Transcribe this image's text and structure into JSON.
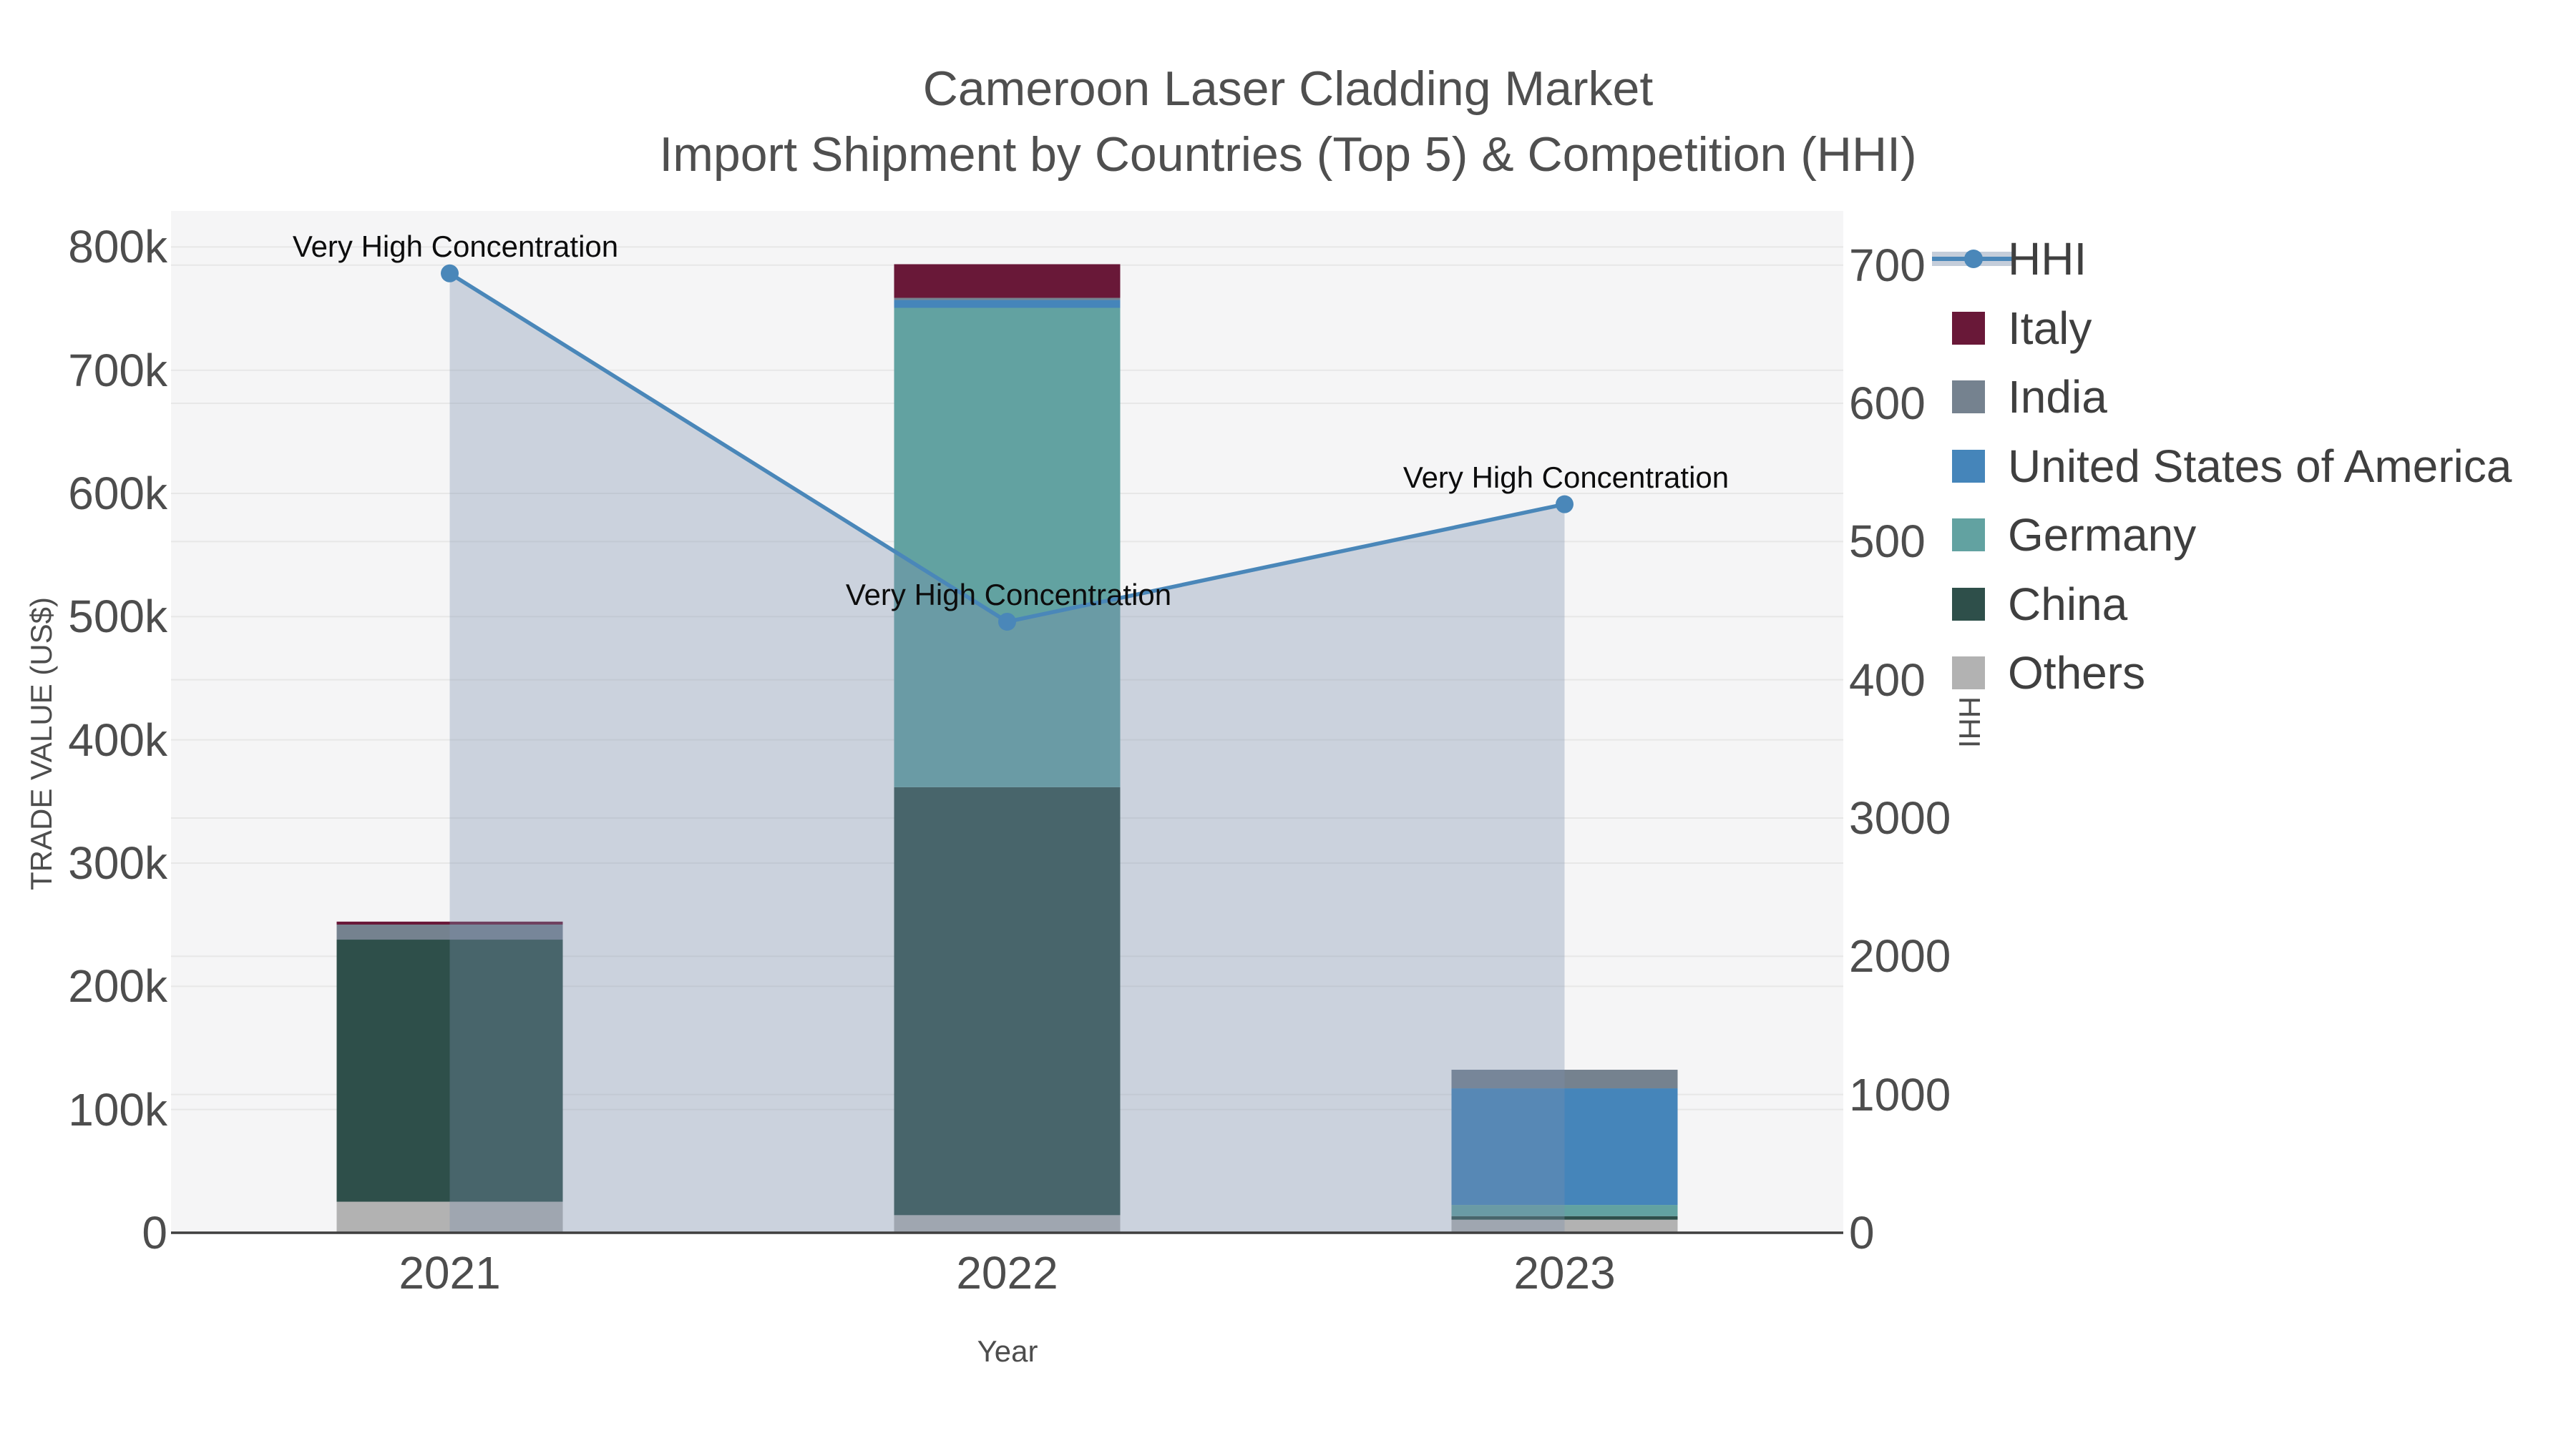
{
  "chart_data": {
    "type": "combo-stacked-bar-line",
    "title_line1": "Cameroon Laser Cladding Market",
    "title_line2": "Import Shipment by Countries (Top 5) & Competition (HHI)",
    "xlabel": "Year",
    "ylabel_left": "TRADE VALUE (US$)",
    "ylabel_right": "HHI",
    "categories": [
      "2021",
      "2022",
      "2023"
    ],
    "y_left_ticks": [
      "0",
      "100k",
      "200k",
      "300k",
      "400k",
      "500k",
      "600k",
      "700k",
      "800k"
    ],
    "y_right_ticks": [
      "0",
      "1000",
      "2000",
      "3000",
      "400",
      "500",
      "600",
      "700"
    ],
    "axis_ranges": {
      "y_left": [
        0,
        800000
      ],
      "y_right_px_per_1000": "one tick step per 1000 up to 3000, upper ticks labeled 400-700"
    },
    "grid": true,
    "legend_position": "right",
    "series": [
      {
        "name": "Italy",
        "color": "#691838",
        "values_usd": [
          2400,
          27300,
          0
        ]
      },
      {
        "name": "India",
        "color": "#75828f",
        "values_usd": [
          12200,
          1700,
          15100
        ]
      },
      {
        "name": "United States of America",
        "color": "#4585ba",
        "values_usd": [
          0,
          6400,
          94600
        ]
      },
      {
        "name": "Germany",
        "color": "#62a2a1",
        "values_usd": [
          0,
          389000,
          9100
        ]
      },
      {
        "name": "China",
        "color": "#2e4f4a",
        "values_usd": [
          212700,
          347300,
          2900
        ]
      },
      {
        "name": "Others",
        "color": "#b2b2b2",
        "values_usd": [
          25200,
          14300,
          10600
        ]
      }
    ],
    "stack_order_bottom_to_top": [
      "Others",
      "China",
      "Germany",
      "United States of America",
      "India",
      "Italy"
    ],
    "totals_usd": [
      252500,
      786000,
      132300
    ],
    "hhi": {
      "name": "HHI",
      "line_color": "#4a87b9",
      "area_fill": "rgba(124,145,172,0.34)",
      "values": [
        6940,
        4420,
        5270
      ]
    },
    "annotations": [
      {
        "text": "Very High Concentration",
        "category": "2021"
      },
      {
        "text": "Very High Concentration",
        "category": "2022"
      },
      {
        "text": "Very High Concentration",
        "category": "2023"
      }
    ],
    "legend_items": [
      "HHI",
      "Italy",
      "India",
      "United States of America",
      "Germany",
      "China",
      "Others"
    ]
  },
  "style": {
    "plot_bg": "#f5f5f6",
    "grid_color": "#e7e7e7",
    "axis_line_color": "#3f3f3f",
    "tick_text_color": "#4d4d4d",
    "title_color": "#4f4f4f",
    "legend_text_color": "#3f3f3f",
    "annotation_color": "#0d0d0d"
  }
}
